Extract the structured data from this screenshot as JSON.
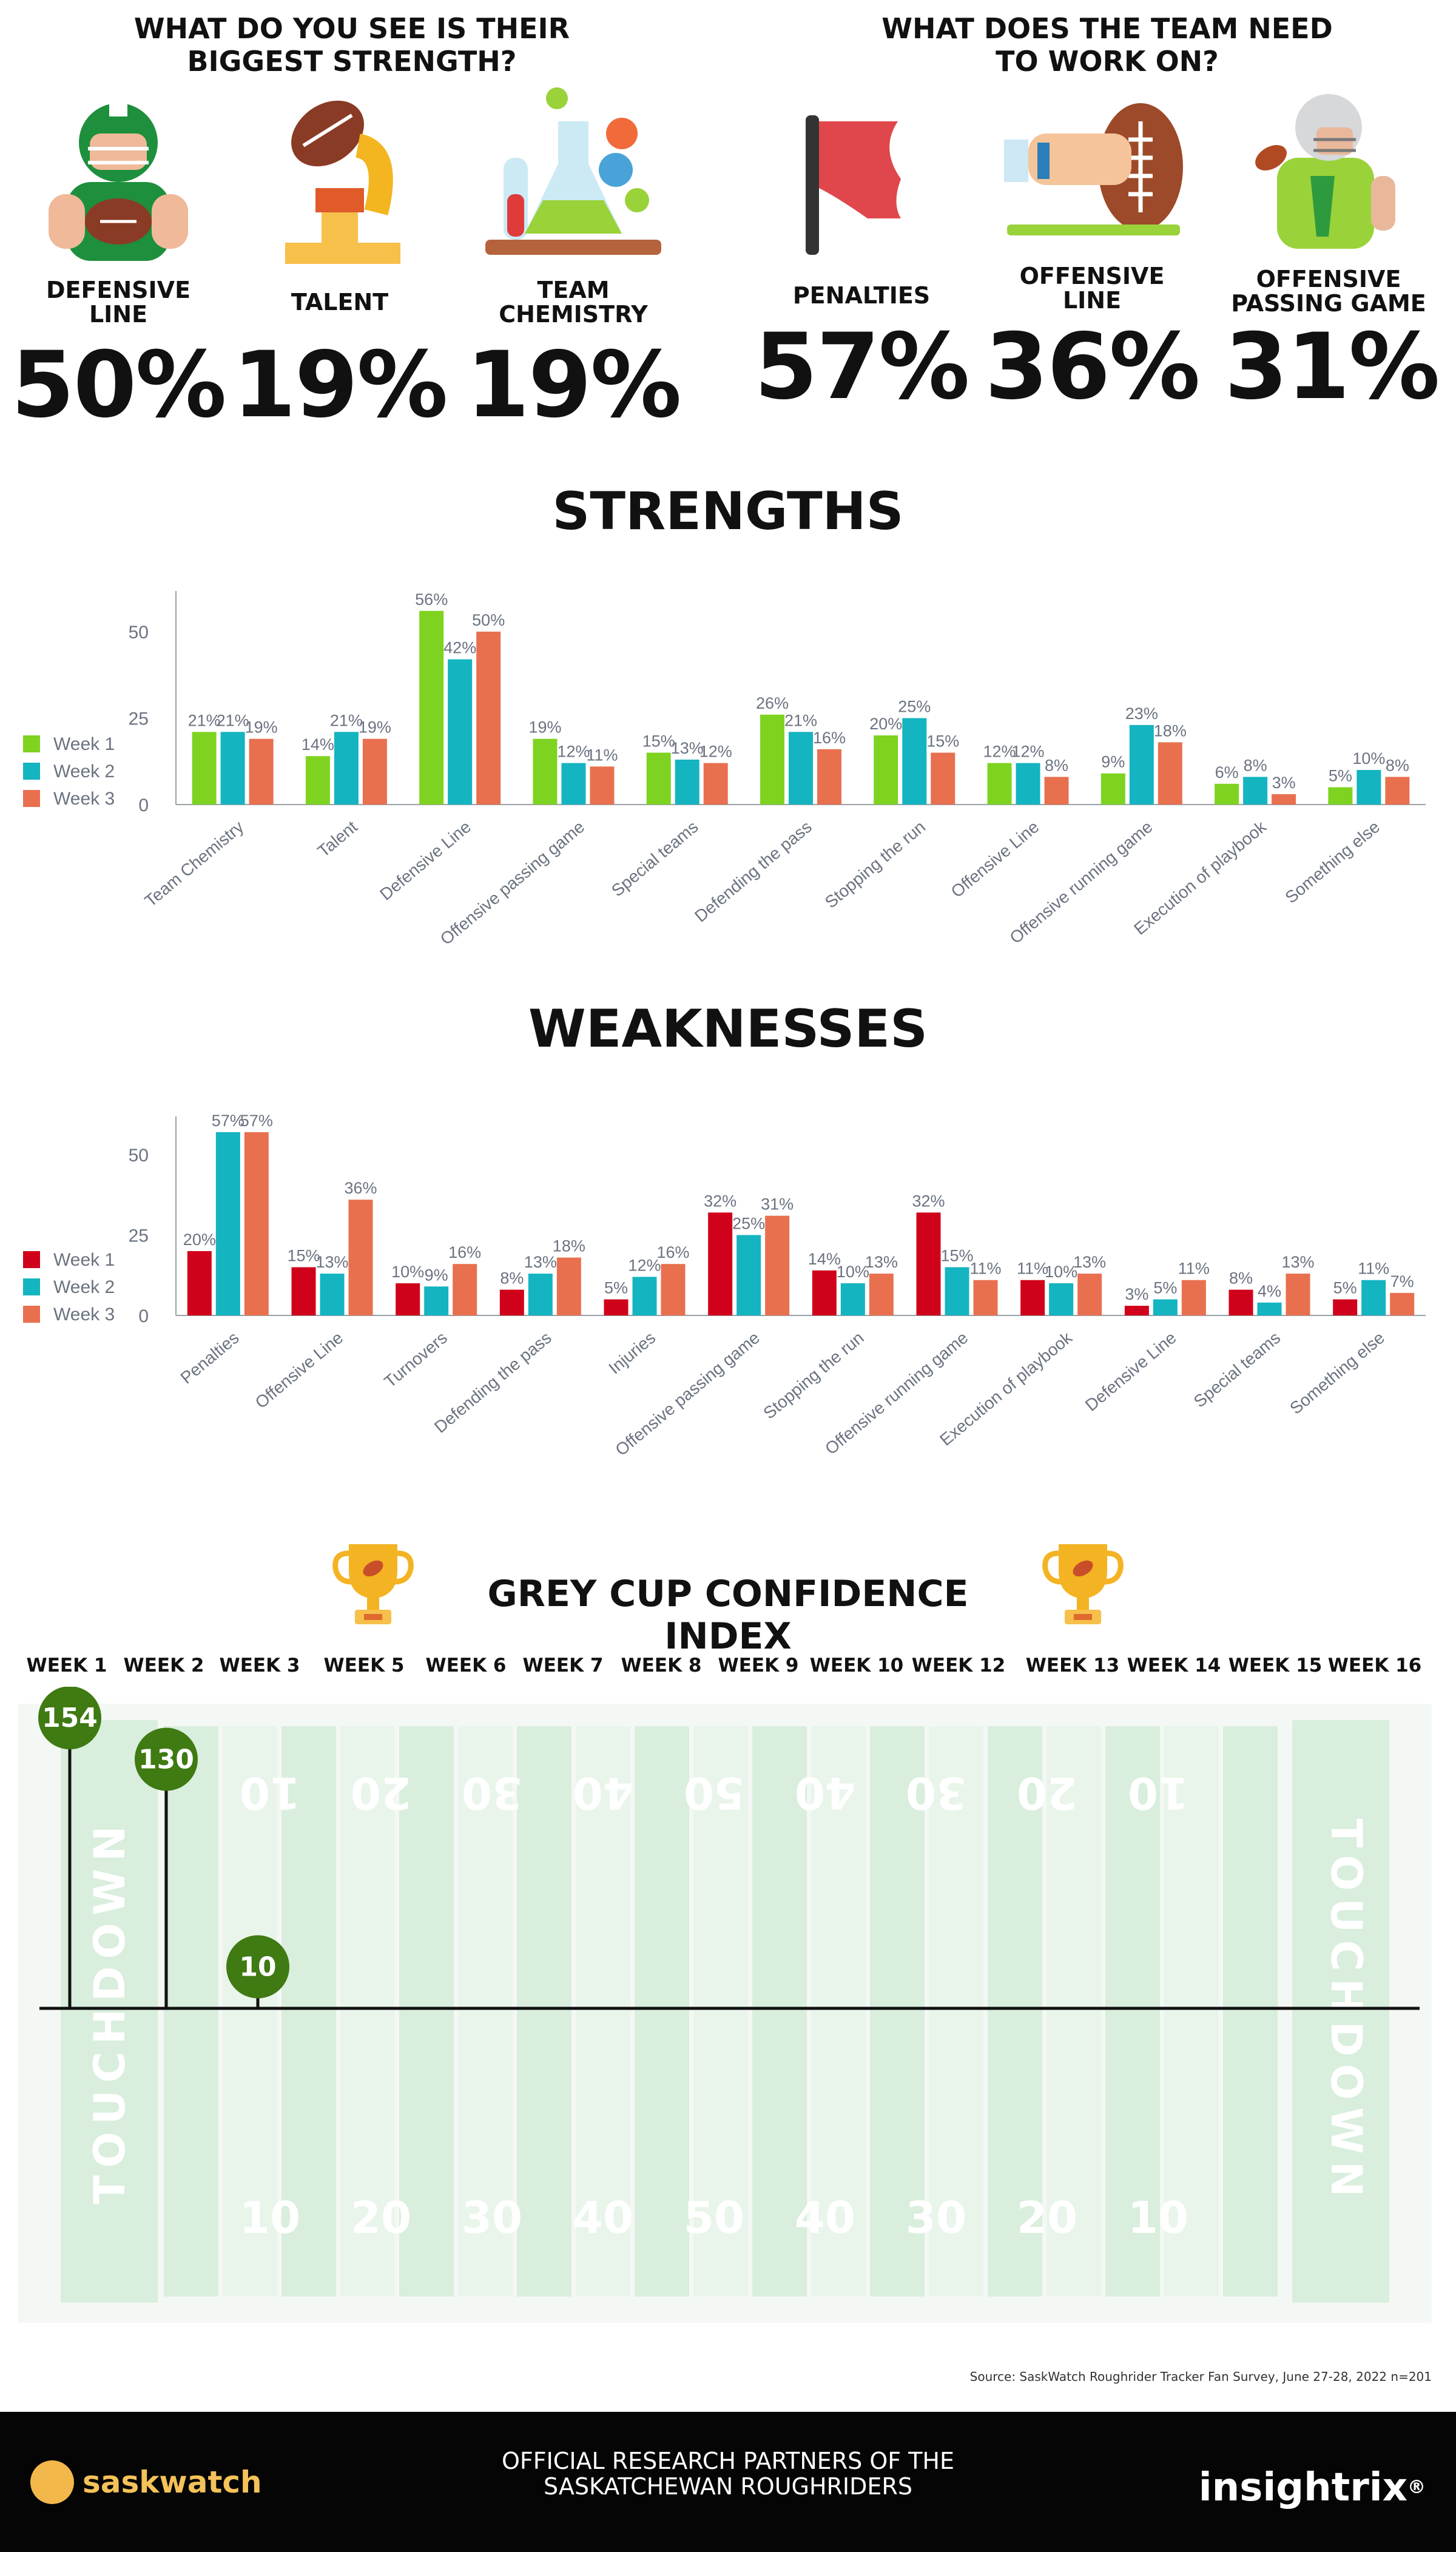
{
  "strength_question": [
    "WHAT DO YOU SEE IS THEIR",
    "BIGGEST STRENGTH?"
  ],
  "work_question": [
    "WHAT DOES THE TEAM NEED",
    "TO WORK ON?"
  ],
  "strength_stats": [
    {
      "label": [
        "DEFENSIVE",
        "LINE"
      ],
      "value": "50%",
      "icon": "football-player-icon"
    },
    {
      "label": [
        "TALENT"
      ],
      "value": "19%",
      "icon": "gramophone-icon"
    },
    {
      "label": [
        "TEAM",
        "CHEMISTRY"
      ],
      "value": "19%",
      "icon": "chemistry-flask-icon"
    }
  ],
  "work_stats": [
    {
      "label": [
        "PENALTIES"
      ],
      "value": "57%",
      "icon": "penalty-flag-icon"
    },
    {
      "label": [
        "OFFENSIVE",
        "LINE"
      ],
      "value": "36%",
      "icon": "hand-football-icon"
    },
    {
      "label": [
        "OFFENSIVE",
        "PASSING GAME"
      ],
      "value": "31%",
      "icon": "quarterback-icon"
    }
  ],
  "colors": {
    "week1_strength": "#7ed321",
    "week1_weakness": "#d0021b",
    "week2": "#14b4c0",
    "week3": "#e8704f",
    "axis_text": "#6b7380",
    "field_dark": "#d9eedd",
    "field_light": "#e9f5ea",
    "marker": "#3f7a12"
  },
  "chart_data": [
    {
      "type": "bar",
      "title": "STRENGTHS",
      "categories": [
        "Team Chemistry",
        "Talent",
        "Defensive Line",
        "Offensive passing game",
        "Special teams",
        "Defending the pass",
        "Stopping the run",
        "Offensive Line",
        "Offensive running game",
        "Execution of playbook",
        "Something else"
      ],
      "series": [
        {
          "name": "Week 1",
          "values": [
            21,
            14,
            56,
            19,
            15,
            26,
            20,
            12,
            9,
            6,
            5
          ]
        },
        {
          "name": "Week 2",
          "values": [
            21,
            21,
            42,
            12,
            13,
            21,
            25,
            12,
            23,
            8,
            10
          ]
        },
        {
          "name": "Week 3",
          "values": [
            19,
            19,
            50,
            11,
            12,
            16,
            15,
            8,
            18,
            3,
            8
          ]
        }
      ],
      "yticks": [
        0,
        25,
        50
      ],
      "ylim": [
        0,
        60
      ],
      "legend": "left"
    },
    {
      "type": "bar",
      "title": "WEAKNESSES",
      "categories": [
        "Penalties",
        "Offensive Line",
        "Turnovers",
        "Defending the pass",
        "Injuries",
        "Offensive passing game",
        "Stopping the run",
        "Offensive running game",
        "Execution of playbook",
        "Defensive Line",
        "Special teams",
        "Something else"
      ],
      "series": [
        {
          "name": "Week 1",
          "values": [
            20,
            15,
            10,
            8,
            5,
            32,
            14,
            32,
            11,
            3,
            8,
            5
          ]
        },
        {
          "name": "Week 2",
          "values": [
            57,
            13,
            9,
            13,
            12,
            25,
            10,
            15,
            10,
            5,
            4,
            11
          ]
        },
        {
          "name": "Week 3",
          "values": [
            57,
            36,
            16,
            18,
            16,
            31,
            13,
            11,
            13,
            11,
            13,
            7
          ]
        }
      ],
      "yticks": [
        0,
        25,
        50
      ],
      "ylim": [
        0,
        60
      ],
      "legend": "left"
    },
    {
      "type": "scatter",
      "title": "GREY CUP CONFIDENCE INDEX",
      "weeks": [
        "WEEK 1",
        "WEEK 2",
        "WEEK 3",
        "WEEK 5",
        "WEEK 6",
        "WEEK 7",
        "WEEK 8",
        "WEEK 9",
        "WEEK 10",
        "WEEK 12",
        "WEEK 13",
        "WEEK 14",
        "WEEK 15",
        "WEEK 16"
      ],
      "points": [
        {
          "week": "WEEK 1",
          "value": 154
        },
        {
          "week": "WEEK 2",
          "value": 130
        },
        {
          "week": "WEEK 3",
          "value": 10
        }
      ],
      "field_numbers_top": [
        "10",
        "20",
        "30",
        "40",
        "50",
        "40",
        "30",
        "20",
        "10"
      ],
      "field_numbers_bottom": [
        "10",
        "20",
        "30",
        "40",
        "50",
        "40",
        "30",
        "20",
        "10"
      ],
      "endzone_text": "TOUCHDOWN"
    }
  ],
  "source": "Source: SaskWatch Roughrider Tracker Fan Survey, June 27-28, 2022  n=201",
  "footer": {
    "left_logo": "saskwatch",
    "center": [
      "OFFICIAL RESEARCH PARTNERS OF THE",
      "SASKATCHEWAN ROUGHRIDERS"
    ],
    "right_logo": "insightrix",
    "right_mark": "®"
  }
}
